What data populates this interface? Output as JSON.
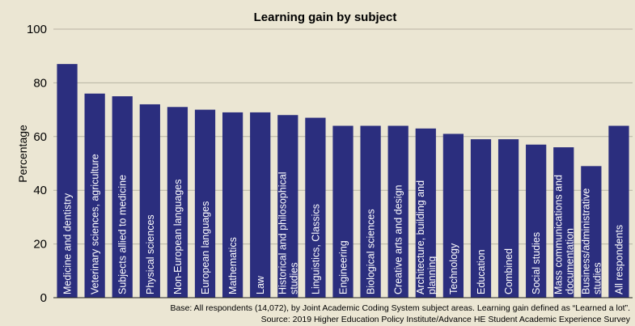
{
  "chart_data": {
    "type": "bar",
    "title": "Learning gain by subject",
    "ylabel": "Percentage",
    "xlabel": "",
    "ylim": [
      0,
      100
    ],
    "yticks": [
      0,
      20,
      40,
      60,
      80,
      100
    ],
    "grid": "horizontal",
    "bar_color": "#2b2e7e",
    "categories": [
      "Medicine and dentistry",
      "Veterinary sciences, agriculture",
      "Subjects allied to medicine",
      "Physical sciences",
      "Non-European languages",
      "European languages",
      "Mathematics",
      "Law",
      "Historical and philosophical studies",
      "Linguistics, Classics",
      "Engineering",
      "Biological sciences",
      "Creative arts and design",
      "Architecture, building and planning",
      "Technology",
      "Education",
      "Combined",
      "Social studies",
      "Mass communications and documentation",
      "Business/administrative studies",
      "All respondents"
    ],
    "values": [
      87,
      76,
      75,
      72,
      71,
      70,
      69,
      69,
      68,
      67,
      64,
      64,
      64,
      63,
      61,
      59,
      59,
      57,
      56,
      49,
      64
    ]
  },
  "footnotes": {
    "base": "Base: All respondents (14,072), by Joint Academic Coding System subject areas. Learning gain defined as “Learned a lot”.",
    "source": "Source: 2019 Higher Education Policy Institute/Advance HE Student Academic Experience Survey"
  }
}
